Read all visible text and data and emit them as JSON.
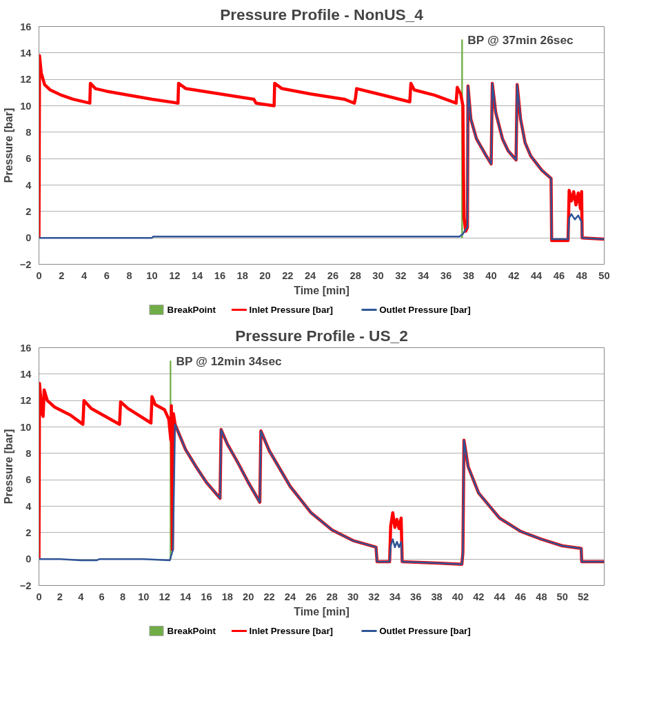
{
  "chart_data": [
    {
      "type": "line",
      "title": "Pressure Profile - NonUS_4",
      "xlabel": "Time [min]",
      "ylabel": "Pressure [bar]",
      "xlim": [
        0,
        50
      ],
      "xticks": [
        0,
        2,
        4,
        6,
        8,
        10,
        12,
        14,
        16,
        18,
        20,
        22,
        24,
        26,
        28,
        30,
        32,
        34,
        36,
        38,
        40,
        42,
        44,
        46,
        48,
        50
      ],
      "ylim": [
        -2,
        16
      ],
      "yticks": [
        -2,
        0,
        2,
        4,
        6,
        8,
        10,
        12,
        14,
        16
      ],
      "grid": "y",
      "legend": "bottom",
      "annotations": [
        {
          "text": "BP @ 37min 26sec",
          "x": 37.43,
          "y": 15
        }
      ],
      "series": [
        {
          "name": "BreakPoint",
          "type": "bar",
          "color": "#70ad47",
          "x": [
            37.43
          ],
          "values": [
            15
          ]
        },
        {
          "name": "Inlet Pressure [bar]",
          "color": "#ff0000",
          "x": [
            0,
            0.05,
            0.2,
            0.5,
            1,
            2,
            3,
            4.5,
            4.55,
            5,
            6,
            8,
            10,
            12.3,
            12.35,
            13,
            16,
            19,
            19.2,
            20.8,
            20.85,
            21.5,
            24,
            27,
            27.9,
            28.0,
            28.1,
            30,
            32.8,
            32.9,
            33.2,
            35,
            36.9,
            37.0,
            37.3,
            37.5,
            37.55,
            37.6,
            37.75,
            37.9,
            37.95,
            38.2,
            38.7,
            39.5,
            40.0,
            40.1,
            40.4,
            41,
            41.5,
            42.2,
            42.3,
            42.6,
            43,
            43.5,
            44.5,
            45.3,
            45.35,
            46.8,
            46.9,
            47.1,
            47.3,
            47.5,
            47.7,
            47.9,
            48.0,
            48.05,
            50
          ],
          "values": [
            0,
            13.8,
            12.5,
            11.6,
            11.2,
            10.8,
            10.5,
            10.2,
            11.7,
            11.3,
            11.1,
            10.8,
            10.5,
            10.2,
            11.7,
            11.3,
            10.9,
            10.5,
            10.2,
            10.0,
            11.7,
            11.3,
            10.9,
            10.5,
            10.2,
            10.6,
            11.3,
            10.9,
            10.3,
            11.7,
            11.2,
            10.8,
            10.2,
            11.4,
            10.9,
            10.0,
            5,
            1.5,
            0.5,
            0.8,
            11.5,
            9,
            7.5,
            6.3,
            5.6,
            11.7,
            9.5,
            7.5,
            6.6,
            5.9,
            11.6,
            9,
            7.2,
            6.2,
            5.1,
            4.5,
            -0.2,
            -0.2,
            3.6,
            2.8,
            3.5,
            2.5,
            3.4,
            2.2,
            3.5,
            0,
            -0.1
          ]
        },
        {
          "name": "Outlet Pressure [bar]",
          "color": "#2f5597",
          "x": [
            0,
            10,
            10.1,
            32,
            37.2,
            37.5,
            37.8,
            37.9,
            37.95,
            38.2,
            38.7,
            39.5,
            40.0,
            40.1,
            40.4,
            41,
            41.5,
            42.2,
            42.3,
            42.6,
            43,
            43.5,
            44.5,
            45.3,
            45.35,
            46.8,
            46.9,
            47.1,
            47.4,
            47.7,
            48.0,
            48.05,
            50
          ],
          "values": [
            0,
            0,
            0.1,
            0.1,
            0.1,
            0.3,
            0.7,
            0.8,
            11.5,
            9,
            7.5,
            6.3,
            5.6,
            11.7,
            9.5,
            7.5,
            6.6,
            5.9,
            11.6,
            9,
            7.2,
            6.2,
            5.1,
            4.5,
            -0.1,
            -0.1,
            1.5,
            1.8,
            1.4,
            1.7,
            1.2,
            0,
            -0.1
          ]
        }
      ]
    },
    {
      "type": "line",
      "title": "Pressure Profile - US_2",
      "xlabel": "Time [min]",
      "ylabel": "Pressure [bar]",
      "xlim": [
        0,
        54
      ],
      "xticks": [
        0,
        2,
        4,
        6,
        8,
        10,
        12,
        14,
        16,
        18,
        20,
        22,
        24,
        26,
        28,
        30,
        32,
        34,
        36,
        38,
        40,
        42,
        44,
        46,
        48,
        50,
        52
      ],
      "ylim": [
        -2,
        16
      ],
      "yticks": [
        -2,
        0,
        2,
        4,
        6,
        8,
        10,
        12,
        14,
        16
      ],
      "grid": "y",
      "legend": "bottom",
      "annotations": [
        {
          "text": "BP @ 12min 34sec",
          "x": 12.57,
          "y": 15
        }
      ],
      "series": [
        {
          "name": "BreakPoint",
          "type": "bar",
          "color": "#70ad47",
          "x": [
            12.57
          ],
          "values": [
            15
          ]
        },
        {
          "name": "Inlet Pressure [bar]",
          "color": "#ff0000",
          "x": [
            0,
            0.05,
            0.3,
            0.4,
            0.5,
            0.8,
            1.5,
            3,
            4.2,
            4.3,
            5,
            7.7,
            7.8,
            8.5,
            10.7,
            10.8,
            11.1,
            12,
            12.4,
            12.6,
            12.65,
            12.75,
            12.85,
            13.0,
            14,
            15,
            16,
            17.3,
            17.4,
            18,
            19,
            20,
            21.1,
            21.2,
            22,
            24,
            26,
            28,
            30,
            32.2,
            32.3,
            33.5,
            33.6,
            33.8,
            34.0,
            34.2,
            34.4,
            34.6,
            34.7,
            38,
            40.4,
            40.5,
            40.6,
            41,
            42,
            44,
            46,
            48,
            50,
            51.8,
            51.85,
            54
          ],
          "values": [
            0,
            13.3,
            11.0,
            10.8,
            12.8,
            12.0,
            11.5,
            10.9,
            10.2,
            12.0,
            11.4,
            10.2,
            11.9,
            11.4,
            10.3,
            12.3,
            11.7,
            11.3,
            10.6,
            9.0,
            11.6,
            0.7,
            11.0,
            10.2,
            8.3,
            7.0,
            5.8,
            4.6,
            9.8,
            8.7,
            7.3,
            5.8,
            4.3,
            9.7,
            8.2,
            5.5,
            3.5,
            2.2,
            1.4,
            0.9,
            -0.2,
            -0.2,
            2.5,
            3.5,
            2.4,
            3.0,
            2.3,
            3.1,
            -0.2,
            -0.3,
            -0.4,
            0.5,
            9.0,
            7.0,
            5.0,
            3.1,
            2.1,
            1.5,
            1.0,
            0.8,
            -0.2,
            -0.2
          ]
        },
        {
          "name": "Outlet Pressure [bar]",
          "color": "#2f5597",
          "x": [
            0,
            2,
            4,
            5.5,
            5.8,
            10,
            12.5,
            12.8,
            13.0,
            14,
            15,
            16,
            17.3,
            17.4,
            18,
            19,
            20,
            21.1,
            21.2,
            22,
            24,
            26,
            28,
            30,
            32.2,
            32.3,
            33.5,
            33.6,
            33.8,
            34.0,
            34.2,
            34.4,
            34.6,
            34.7,
            38,
            40.4,
            40.5,
            40.6,
            41,
            42,
            44,
            46,
            48,
            50,
            51.8,
            51.85,
            54
          ],
          "values": [
            0,
            0,
            -0.1,
            -0.1,
            0,
            0,
            -0.1,
            0.7,
            10.2,
            8.3,
            7.0,
            5.8,
            4.6,
            9.8,
            8.7,
            7.3,
            5.8,
            4.3,
            9.7,
            8.2,
            5.5,
            3.5,
            2.2,
            1.4,
            0.9,
            -0.2,
            -0.2,
            1.0,
            1.5,
            0.9,
            1.3,
            0.9,
            1.3,
            -0.2,
            -0.3,
            -0.4,
            0.5,
            9.0,
            7.0,
            5.0,
            3.1,
            2.1,
            1.5,
            1.0,
            0.8,
            -0.2,
            -0.2
          ]
        }
      ]
    }
  ]
}
